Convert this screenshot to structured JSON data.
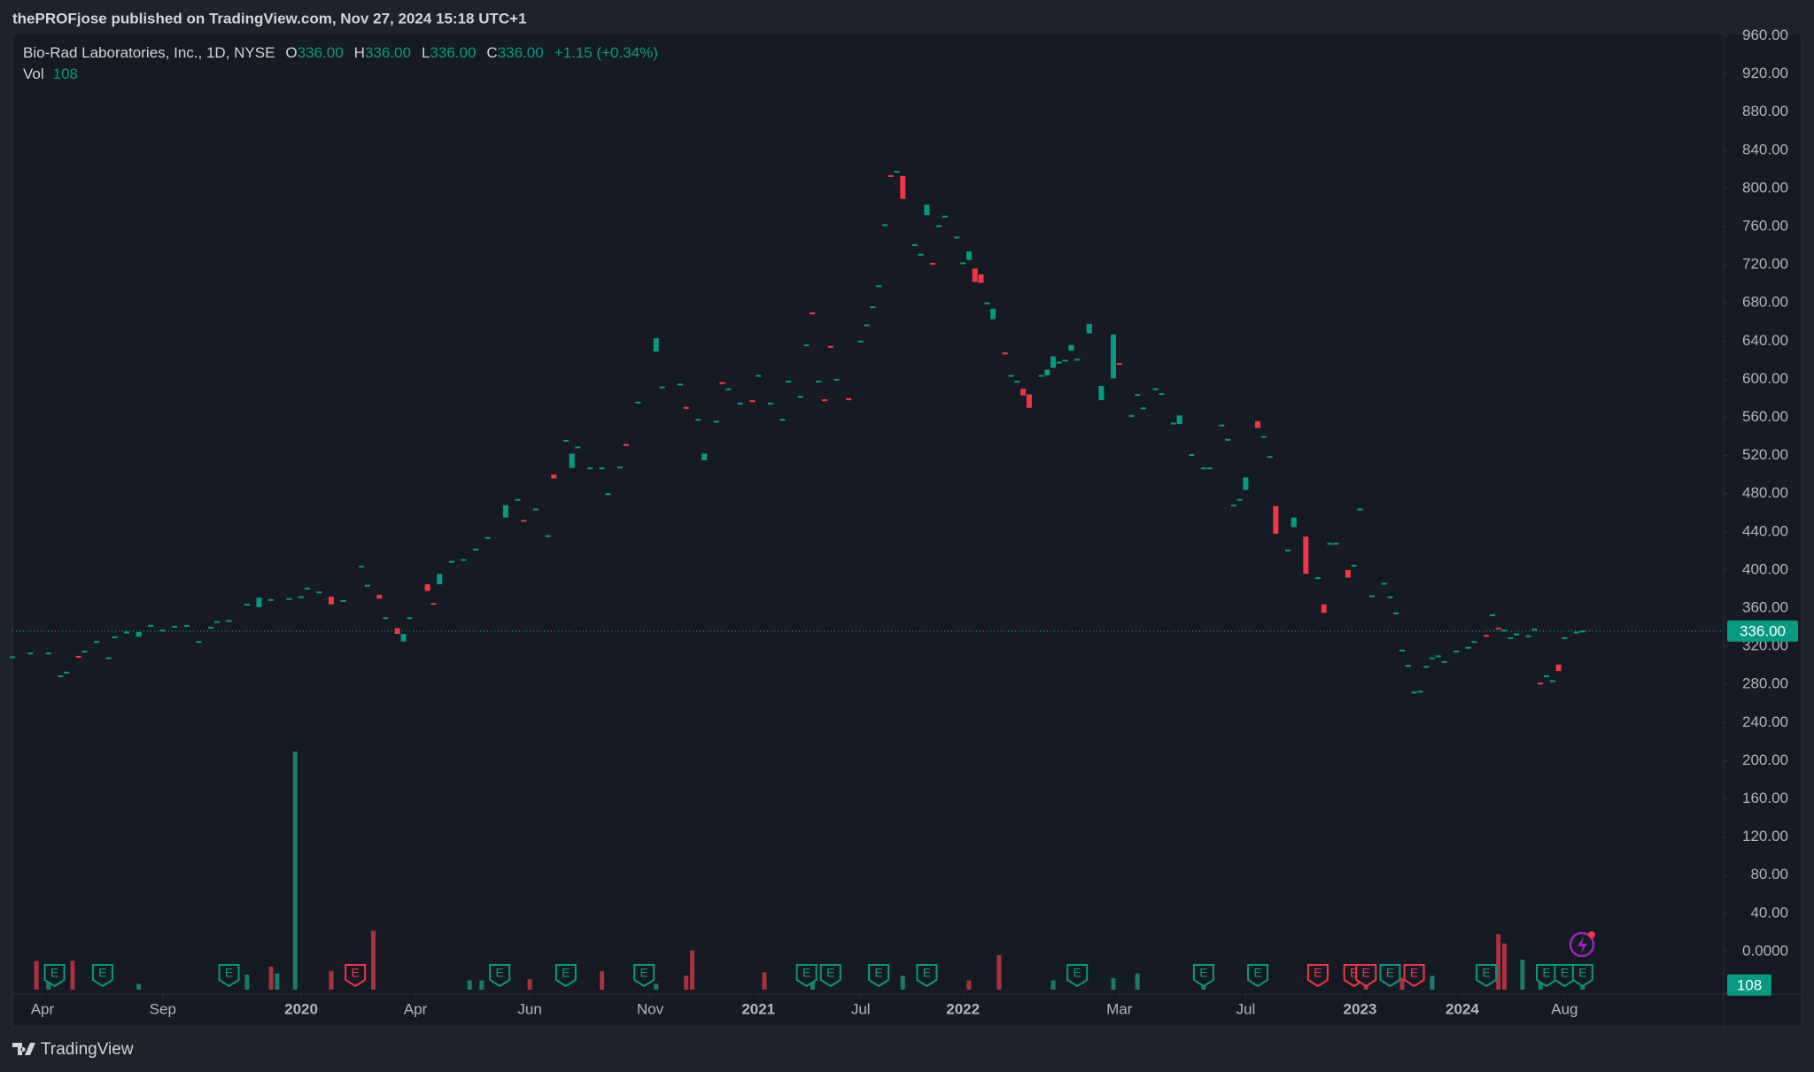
{
  "header": {
    "publisher_line": "thePROFjose published on TradingView.com, Nov 27, 2024 15:18 UTC+1"
  },
  "chart_data": {
    "type": "candlestick",
    "symbol": "Bio-Rad Laboratories, Inc., 1D, NYSE",
    "ohlc": [
      {
        "letter": "O",
        "text": "336.00"
      },
      {
        "letter": "H",
        "text": "336.00"
      },
      {
        "letter": "L",
        "text": "336.00"
      },
      {
        "letter": "C",
        "text": "336.00"
      }
    ],
    "change": "+1.15 (+0.34%)",
    "volume_label": "Vol",
    "volume_value": 108,
    "up_color": "#089981",
    "down_color": "#f23645",
    "xlim": [
      0,
      284
    ],
    "ylim": [
      -40,
      960
    ],
    "yticks": [
      {
        "value": 960,
        "label": "960.00"
      },
      {
        "value": 920,
        "label": "920.00"
      },
      {
        "value": 880,
        "label": "880.00"
      },
      {
        "value": 840,
        "label": "840.00"
      },
      {
        "value": 800,
        "label": "800.00"
      },
      {
        "value": 760,
        "label": "760.00"
      },
      {
        "value": 720,
        "label": "720.00"
      },
      {
        "value": 680,
        "label": "680.00"
      },
      {
        "value": 640,
        "label": "640.00"
      },
      {
        "value": 600,
        "label": "600.00"
      },
      {
        "value": 560,
        "label": "560.00"
      },
      {
        "value": 520,
        "label": "520.00"
      },
      {
        "value": 480,
        "label": "480.00"
      },
      {
        "value": 440,
        "label": "440.00"
      },
      {
        "value": 400,
        "label": "400.00"
      },
      {
        "value": 360,
        "label": "360.00"
      },
      {
        "value": 320,
        "label": "320.00"
      },
      {
        "value": 280,
        "label": "280.00"
      },
      {
        "value": 240,
        "label": "240.00"
      },
      {
        "value": 200,
        "label": "200.00"
      },
      {
        "value": 160,
        "label": "160.00"
      },
      {
        "value": 120,
        "label": "120.00"
      },
      {
        "value": 80,
        "label": "80.00"
      },
      {
        "value": 40,
        "label": "40.00"
      },
      {
        "value": 0,
        "label": "0.0000"
      }
    ],
    "xticks": [
      {
        "value": 5,
        "label": "Apr"
      },
      {
        "value": 25,
        "label": "Sep"
      },
      {
        "value": 48,
        "label": "2020"
      },
      {
        "value": 67,
        "label": "Apr"
      },
      {
        "value": 86,
        "label": "Jun"
      },
      {
        "value": 106,
        "label": "Nov"
      },
      {
        "value": 124,
        "label": "2021"
      },
      {
        "value": 141,
        "label": "Jul"
      },
      {
        "value": 158,
        "label": "2022"
      },
      {
        "value": 184,
        "label": "Mar"
      },
      {
        "value": 205,
        "label": "Jul"
      },
      {
        "value": 224,
        "label": "2023"
      },
      {
        "value": 241,
        "label": "2024"
      },
      {
        "value": 258,
        "label": "Aug"
      }
    ],
    "last_price": {
      "value": 336,
      "label": "336.00"
    },
    "candles": {
      "x": [
        0,
        3,
        6,
        8,
        9,
        11,
        12,
        14,
        16,
        17,
        19,
        21,
        23,
        25,
        27,
        29,
        31,
        33,
        34,
        36,
        39,
        41,
        43,
        46,
        48,
        49,
        51,
        53,
        55,
        58,
        59,
        61,
        62,
        64,
        65,
        66,
        69,
        70,
        71,
        73,
        75,
        77,
        79,
        82,
        84,
        85,
        87,
        89,
        90,
        92,
        93,
        94,
        96,
        98,
        99,
        101,
        102,
        104,
        107,
        108,
        111,
        112,
        114,
        115,
        117,
        118,
        119,
        121,
        123,
        124,
        126,
        128,
        129,
        131,
        132,
        133,
        134,
        135,
        136,
        137,
        139,
        141,
        142,
        143,
        144,
        145,
        146,
        147,
        148,
        150,
        151,
        152,
        153,
        154,
        155,
        157,
        158,
        159,
        160,
        161,
        162,
        163,
        165,
        166,
        167,
        168,
        169,
        171,
        172,
        173,
        174,
        175,
        176,
        177,
        179,
        181,
        183,
        184,
        186,
        187,
        188,
        190,
        191,
        193,
        194,
        196,
        198,
        199,
        201,
        202,
        203,
        204,
        205,
        207,
        208,
        209,
        210,
        212,
        213,
        215,
        217,
        218,
        219,
        220,
        222,
        223,
        224,
        226,
        228,
        229,
        230,
        231,
        232,
        233,
        234,
        235,
        236,
        237,
        238,
        240,
        242,
        243,
        245,
        246,
        247,
        248,
        249,
        250,
        252,
        253,
        254,
        255,
        256,
        257,
        258,
        260,
        261
      ],
      "open": [
        308,
        312,
        312,
        288,
        292,
        310,
        314,
        324,
        307,
        329,
        334,
        330,
        341,
        336,
        340,
        341,
        324,
        339,
        345,
        346,
        363,
        361,
        368,
        369,
        371,
        380,
        376,
        372,
        367,
        403,
        383,
        374,
        349,
        339,
        325,
        349,
        385,
        365,
        385,
        408,
        410,
        421,
        433,
        455,
        473,
        452,
        463,
        435,
        500,
        535,
        507,
        528,
        506,
        506,
        479,
        507,
        532,
        575,
        629,
        591,
        594,
        571,
        557,
        515,
        555,
        597,
        589,
        574,
        578,
        603,
        574,
        557,
        597,
        581,
        635,
        670,
        597,
        579,
        635,
        599,
        580,
        639,
        656,
        675,
        697,
        761,
        814,
        817,
        813,
        740,
        730,
        772,
        722,
        760,
        770,
        748,
        721,
        725,
        716,
        710,
        679,
        663,
        628,
        603,
        597,
        590,
        584,
        603,
        604,
        612,
        617,
        619,
        630,
        620,
        648,
        578,
        601,
        617,
        561,
        583,
        569,
        589,
        584,
        553,
        553,
        520,
        506,
        506,
        551,
        536,
        467,
        473,
        484,
        556,
        539,
        518,
        467,
        420,
        445,
        435,
        391,
        364,
        427,
        427,
        400,
        404,
        463,
        372,
        385,
        371,
        354,
        315,
        299,
        271,
        272,
        298,
        307,
        309,
        303,
        314,
        318,
        324,
        332,
        352,
        339,
        336,
        328,
        332,
        330,
        337,
        282,
        288,
        283,
        301,
        328,
        334,
        335
      ],
      "close": [
        309,
        313,
        313,
        289,
        293,
        308,
        315,
        325,
        308,
        330,
        335,
        335,
        342,
        337,
        341,
        342,
        325,
        340,
        346,
        347,
        364,
        371,
        369,
        370,
        372,
        381,
        377,
        364,
        368,
        404,
        384,
        370,
        350,
        333,
        333,
        350,
        378,
        364,
        396,
        409,
        411,
        422,
        434,
        468,
        474,
        451,
        464,
        436,
        496,
        536,
        522,
        529,
        507,
        507,
        480,
        508,
        530,
        576,
        643,
        592,
        595,
        569,
        558,
        522,
        556,
        595,
        590,
        575,
        576,
        604,
        575,
        558,
        598,
        582,
        636,
        668,
        598,
        577,
        633,
        600,
        578,
        640,
        657,
        676,
        698,
        762,
        812,
        818,
        789,
        741,
        731,
        783,
        720,
        761,
        771,
        749,
        722,
        734,
        702,
        701,
        680,
        674,
        626,
        604,
        598,
        583,
        570,
        604,
        610,
        624,
        618,
        620,
        636,
        621,
        658,
        593,
        647,
        615,
        562,
        584,
        570,
        590,
        585,
        554,
        562,
        521,
        507,
        507,
        552,
        537,
        468,
        474,
        497,
        549,
        540,
        519,
        438,
        421,
        455,
        396,
        392,
        355,
        428,
        428,
        392,
        405,
        464,
        373,
        386,
        372,
        355,
        316,
        300,
        272,
        273,
        299,
        308,
        310,
        304,
        315,
        319,
        325,
        330,
        353,
        338,
        337,
        329,
        333,
        331,
        338,
        280,
        289,
        284,
        294,
        329,
        335,
        336
      ]
    },
    "volume": {
      "ylim": [
        0,
        8000
      ],
      "x": [
        4,
        6,
        10,
        21,
        39,
        43,
        44,
        47,
        53,
        60,
        76,
        78,
        86,
        98,
        107,
        112,
        113,
        125,
        133,
        148,
        159,
        164,
        173,
        183,
        187,
        198,
        225,
        231,
        236,
        247,
        248,
        251,
        254,
        261
      ],
      "values": [
        675,
        432,
        675,
        135,
        351,
        540,
        378,
        5562,
        432,
        1377,
        216,
        216,
        243,
        432,
        135,
        324,
        918,
        405,
        270,
        324,
        216,
        810,
        216,
        270,
        378,
        162,
        162,
        270,
        324,
        1296,
        1080,
        702,
        216,
        108
      ],
      "colors": [
        "#a8323e",
        "#1b7a6c",
        "#a8323e",
        "#1b7a6c",
        "#1b7a6c",
        "#a8323e",
        "#1b7a6c",
        "#1b7a6c",
        "#a8323e",
        "#a8323e",
        "#1b7a6c",
        "#1b7a6c",
        "#a8323e",
        "#a8323e",
        "#1b7a6c",
        "#a8323e",
        "#a8323e",
        "#a8323e",
        "#1b7a6c",
        "#1b7a6c",
        "#a8323e",
        "#a8323e",
        "#1b7a6c",
        "#1b7a6c",
        "#1b7a6c",
        "#1b7a6c",
        "#a8323e",
        "#a8323e",
        "#1b7a6c",
        "#a8323e",
        "#a8323e",
        "#1b7a6c",
        "#1b7a6c",
        "#1b7a6c"
      ]
    },
    "earnings": {
      "x": [
        7,
        15,
        36,
        57,
        81,
        92,
        105,
        132,
        136,
        144,
        152,
        177,
        198,
        207,
        217,
        223,
        225,
        229,
        233,
        245,
        255,
        258,
        261
      ],
      "labels": [
        "E",
        "E",
        "E",
        "E",
        "E",
        "E",
        "E",
        "E",
        "E",
        "E",
        "E",
        "E",
        "E",
        "E",
        "E",
        "E",
        "E",
        "E",
        "E",
        "E",
        "E",
        "E",
        "E"
      ],
      "colors": [
        "#089981",
        "#089981",
        "#089981",
        "#f23645",
        "#089981",
        "#089981",
        "#089981",
        "#089981",
        "#089981",
        "#089981",
        "#089981",
        "#089981",
        "#089981",
        "#089981",
        "#f23645",
        "#f23645",
        "#f23645",
        "#089981",
        "#f23645",
        "#089981",
        "#089981",
        "#089981",
        "#089981"
      ]
    }
  },
  "footer": {
    "brand": "TradingView"
  }
}
